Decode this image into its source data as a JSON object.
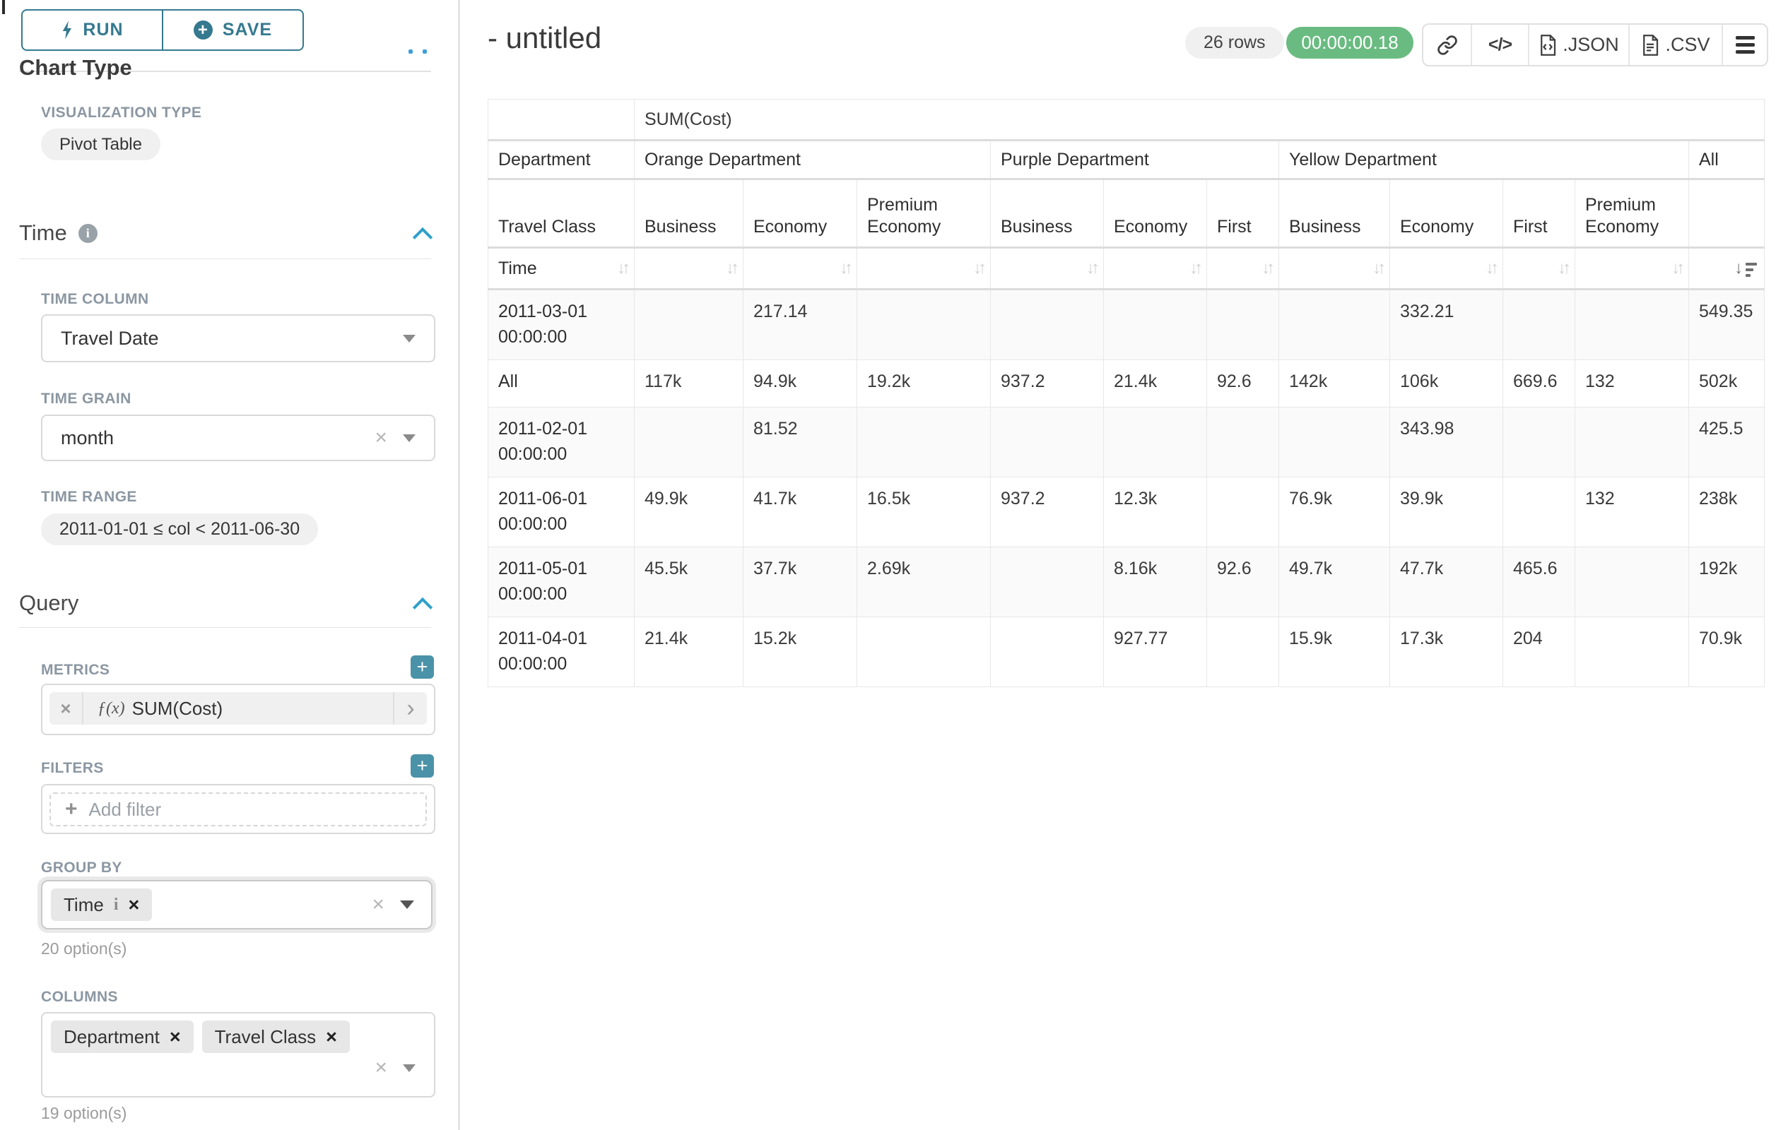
{
  "sidebar": {
    "run_label": "RUN",
    "save_label": "SAVE",
    "chart_type_heading": "Chart Type",
    "visualization_type_label": "VISUALIZATION TYPE",
    "visualization_type_value": "Pivot Table",
    "time_section": {
      "title": "Time",
      "time_column_label": "TIME COLUMN",
      "time_column_value": "Travel Date",
      "time_grain_label": "TIME GRAIN",
      "time_grain_value": "month",
      "time_range_label": "TIME RANGE",
      "time_range_value": "2011-01-01 ≤ col < 2011-06-30"
    },
    "query_section": {
      "title": "Query",
      "metrics_label": "METRICS",
      "metric_prefix": "ƒ(x)",
      "metric_value": "SUM(Cost)",
      "filters_label": "FILTERS",
      "add_filter_placeholder": "Add filter",
      "group_by_label": "GROUP BY",
      "group_by_values": [
        "Time"
      ],
      "group_by_options_hint": "20 option(s)",
      "columns_label": "COLUMNS",
      "columns_values": [
        "Department",
        "Travel Class"
      ],
      "columns_options_hint": "19 option(s)"
    }
  },
  "main": {
    "title": "- untitled",
    "row_count_badge": "26 rows",
    "timer_badge": "00:00:00.18",
    "code_glyph": "</>",
    "export_json_label": ".JSON",
    "export_csv_label": ".CSV"
  },
  "chart_data": {
    "type": "table",
    "title": "SUM(Cost)",
    "corner_labels": {
      "metric_row": "",
      "department_row": "Department",
      "travel_class_row": "Travel Class",
      "time_row": "Time"
    },
    "column_groups": [
      {
        "label": "Orange Department",
        "leaves": [
          "Business",
          "Economy",
          "Premium Economy"
        ]
      },
      {
        "label": "Purple Department",
        "leaves": [
          "Business",
          "Economy",
          "First"
        ]
      },
      {
        "label": "Yellow Department",
        "leaves": [
          "Business",
          "Economy",
          "First",
          "Premium Economy"
        ]
      },
      {
        "label": "All",
        "leaves": [
          ""
        ]
      }
    ],
    "rows": [
      {
        "label": "2011-03-01 00:00:00",
        "values": [
          "",
          "217.14",
          "",
          "",
          "",
          "",
          "",
          "332.21",
          "",
          "",
          "549.35"
        ]
      },
      {
        "label": "All",
        "values": [
          "117k",
          "94.9k",
          "19.2k",
          "937.2",
          "21.4k",
          "92.6",
          "142k",
          "106k",
          "669.6",
          "132",
          "502k"
        ]
      },
      {
        "label": "2011-02-01 00:00:00",
        "values": [
          "",
          "81.52",
          "",
          "",
          "",
          "",
          "",
          "343.98",
          "",
          "",
          "425.5"
        ]
      },
      {
        "label": "2011-06-01 00:00:00",
        "values": [
          "49.9k",
          "41.7k",
          "16.5k",
          "937.2",
          "12.3k",
          "",
          "76.9k",
          "39.9k",
          "",
          "132",
          "238k"
        ]
      },
      {
        "label": "2011-05-01 00:00:00",
        "values": [
          "45.5k",
          "37.7k",
          "2.69k",
          "",
          "8.16k",
          "92.6",
          "49.7k",
          "47.7k",
          "465.6",
          "",
          "192k"
        ]
      },
      {
        "label": "2011-04-01 00:00:00",
        "values": [
          "21.4k",
          "15.2k",
          "",
          "",
          "927.77",
          "",
          "15.9k",
          "17.3k",
          "204",
          "",
          "70.9k"
        ]
      }
    ]
  }
}
